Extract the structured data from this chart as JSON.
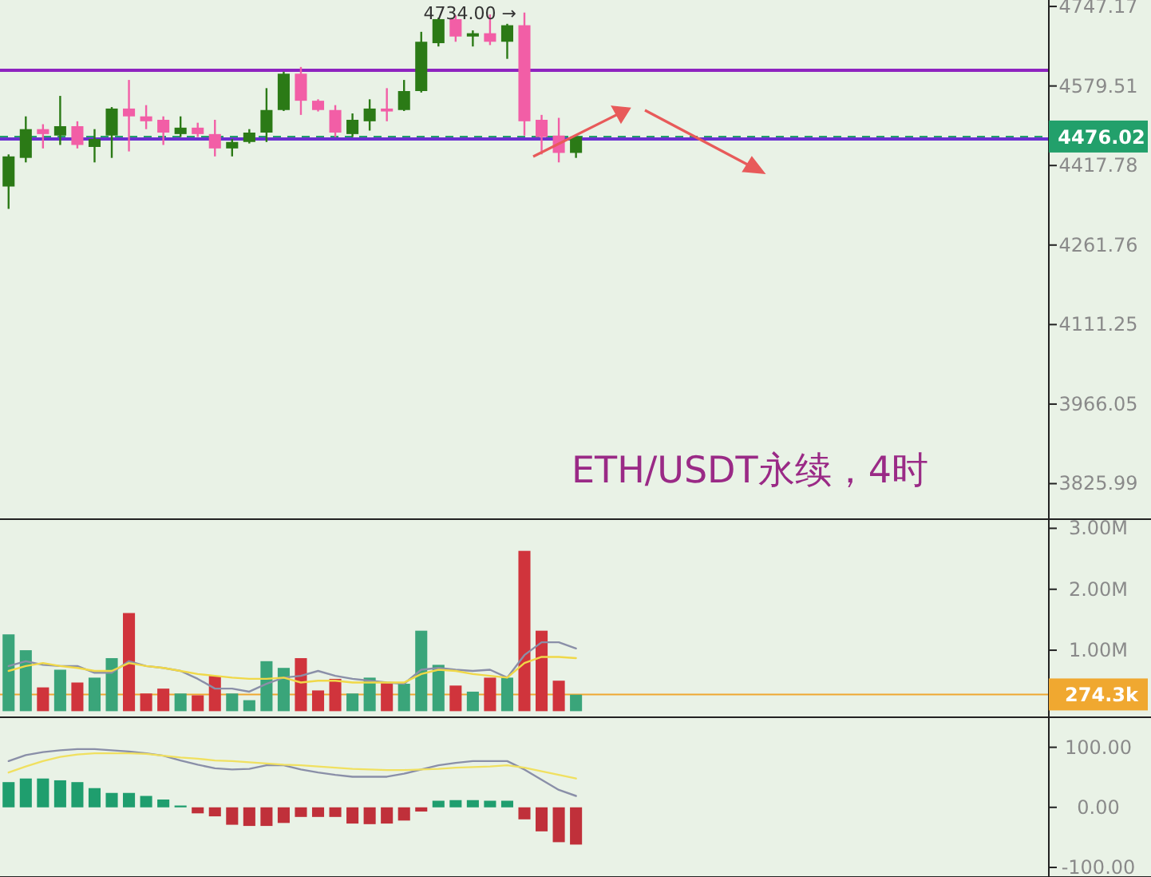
{
  "chart_data": [
    {
      "type": "candlestick",
      "log": "y",
      "tick_labels": "y",
      "ylim": [
        3765,
        4761
      ],
      "yticks": [
        4747.17,
        4579.51,
        4417.78,
        4261.76,
        4111.25,
        3966.05,
        3825.99
      ],
      "categories": [
        null,
        null,
        null,
        null,
        null,
        null,
        null,
        null,
        null,
        null,
        null,
        null,
        null,
        null,
        null,
        null,
        null,
        null,
        null,
        null,
        null,
        null,
        null,
        null,
        null,
        null,
        null,
        null,
        null,
        null,
        null,
        null,
        null,
        null,
        null,
        null,
        null,
        null,
        null,
        null,
        null,
        null,
        null,
        null,
        null,
        null,
        null,
        null,
        null,
        null,
        null,
        null,
        null,
        null,
        null,
        null,
        null,
        null,
        null,
        null,
        null
      ],
      "ohlc": [
        [
          4376,
          4440,
          4332,
          4436
        ],
        [
          4433,
          4517,
          4424,
          4491
        ],
        [
          4491,
          4501,
          4452,
          4481
        ],
        [
          4478,
          4559,
          4459,
          4497
        ],
        [
          4497,
          4507,
          4452,
          4459
        ],
        [
          4455,
          4491,
          4424,
          4471
        ],
        [
          4478,
          4536,
          4433,
          4533
        ],
        [
          4533,
          4592,
          4446,
          4517
        ],
        [
          4517,
          4540,
          4491,
          4507
        ],
        [
          4510,
          4517,
          4459,
          4484
        ],
        [
          4481,
          4517,
          4475,
          4494
        ],
        [
          4494,
          4504,
          4475,
          4481
        ],
        [
          4481,
          4510,
          4436,
          4452
        ],
        [
          4452,
          4471,
          4436,
          4465
        ],
        [
          4465,
          4491,
          4462,
          4484
        ],
        [
          4484,
          4575,
          4465,
          4530
        ],
        [
          4530,
          4609,
          4528,
          4605
        ],
        [
          4605,
          4619,
          4520,
          4549
        ],
        [
          4549,
          4552,
          4527,
          4530
        ],
        [
          4530,
          4540,
          4475,
          4484
        ],
        [
          4481,
          4523,
          4475,
          4510
        ],
        [
          4507,
          4552,
          4488,
          4533
        ],
        [
          4533,
          4575,
          4507,
          4527
        ],
        [
          4530,
          4592,
          4528,
          4569
        ],
        [
          4569,
          4693,
          4566,
          4672
        ],
        [
          4669,
          4723,
          4662,
          4720
        ],
        [
          4720,
          4728,
          4672,
          4683
        ],
        [
          4683,
          4696,
          4662,
          4690
        ],
        [
          4690,
          4730,
          4665,
          4672
        ],
        [
          4672,
          4710,
          4636,
          4707
        ],
        [
          4707,
          4734.0,
          4478,
          4507
        ],
        [
          4510,
          4520,
          4440,
          4475
        ],
        [
          4478,
          4514,
          4424,
          4443
        ],
        [
          4443,
          4476.02,
          4433,
          4476.02
        ],
        null,
        null,
        null,
        null,
        null,
        null,
        null,
        null,
        null,
        null,
        null,
        null,
        null,
        null,
        null,
        null,
        null,
        null,
        null,
        null,
        null,
        null,
        null,
        null,
        null,
        null,
        null
      ],
      "colors": [
        "#2b7a16",
        "#2b7a16",
        "#f25ea6",
        "#2b7a16",
        "#f25ea6",
        "#2b7a16",
        "#2b7a16",
        "#f25ea6",
        "#f25ea6",
        "#f25ea6",
        "#2b7a16",
        "#f25ea6",
        "#f25ea6",
        "#2b7a16",
        "#2b7a16",
        "#2b7a16",
        "#2b7a16",
        "#f25ea6",
        "#f25ea6",
        "#f25ea6",
        "#2b7a16",
        "#2b7a16",
        "#f25ea6",
        "#2b7a16",
        "#2b7a16",
        "#2b7a16",
        "#f25ea6",
        "#2b7a16",
        "#f25ea6",
        "#2b7a16",
        "#f25ea6",
        "#f25ea6",
        "#f25ea6",
        "#2b7a16",
        null,
        null,
        null,
        null,
        null,
        null,
        null,
        null,
        null,
        null,
        null,
        null,
        null,
        null,
        null,
        null,
        null,
        null,
        null,
        null,
        null,
        null,
        null,
        null,
        null,
        null,
        null
      ],
      "ref_lines": [
        {
          "axis": "y",
          "value": 4612,
          "color": "#8e24c0"
        },
        {
          "axis": "y",
          "value": 4471,
          "color": "#6a30d0"
        },
        {
          "axis": "y",
          "value": 4476.02,
          "label": "4476.02",
          "color": "#22a06b",
          "line_style": "dashed"
        }
      ],
      "annotations": [
        "4734.00 →",
        "ETH/USDT永续，4时"
      ]
    },
    {
      "type": "bar",
      "tick_labels": "y",
      "ylim": [
        -0.1,
        3.15
      ],
      "yticks": [
        {
          "value": 3,
          "label": "3.00M"
        },
        {
          "value": 2,
          "label": "2.00M"
        },
        {
          "value": 1,
          "label": "1.00M"
        }
      ],
      "categories": [
        null,
        null,
        null,
        null,
        null,
        null,
        null,
        null,
        null,
        null,
        null,
        null,
        null,
        null,
        null,
        null,
        null,
        null,
        null,
        null,
        null,
        null,
        null,
        null,
        null,
        null,
        null,
        null,
        null,
        null,
        null,
        null,
        null,
        null,
        null,
        null,
        null,
        null,
        null,
        null,
        null,
        null,
        null,
        null,
        null,
        null,
        null,
        null,
        null,
        null,
        null,
        null,
        null,
        null,
        null,
        null,
        null,
        null,
        null,
        null,
        null
      ],
      "series": [
        {
          "type": "bar",
          "values": [
            1.26,
            1.0,
            0.39,
            0.68,
            0.47,
            0.55,
            0.87,
            1.61,
            0.29,
            0.37,
            0.29,
            0.26,
            0.58,
            0.29,
            0.18,
            0.82,
            0.71,
            0.87,
            0.34,
            0.53,
            0.29,
            0.55,
            0.47,
            0.45,
            1.32,
            0.76,
            0.42,
            0.32,
            0.55,
            0.55,
            2.63,
            1.32,
            0.5,
            0.27,
            null,
            null,
            null,
            null,
            null,
            null,
            null,
            null,
            null,
            null,
            null,
            null,
            null,
            null,
            null,
            null,
            null,
            null,
            null,
            null,
            null,
            null,
            null,
            null,
            null,
            null,
            null
          ],
          "colors": [
            "#3aa57a",
            "#3aa57a",
            "#d0343c",
            "#3aa57a",
            "#d0343c",
            "#3aa57a",
            "#3aa57a",
            "#d0343c",
            "#d0343c",
            "#d0343c",
            "#3aa57a",
            "#d0343c",
            "#d0343c",
            "#3aa57a",
            "#3aa57a",
            "#3aa57a",
            "#3aa57a",
            "#d0343c",
            "#d0343c",
            "#d0343c",
            "#3aa57a",
            "#3aa57a",
            "#d0343c",
            "#3aa57a",
            "#3aa57a",
            "#3aa57a",
            "#d0343c",
            "#3aa57a",
            "#d0343c",
            "#3aa57a",
            "#d0343c",
            "#d0343c",
            "#d0343c",
            "#3aa57a",
            null,
            null,
            null,
            null,
            null,
            null,
            null,
            null,
            null,
            null,
            null,
            null,
            null,
            null,
            null,
            null,
            null,
            null,
            null,
            null,
            null,
            null,
            null,
            null,
            null,
            null,
            null
          ]
        },
        {
          "type": "line",
          "color": "#8a8fa8",
          "values": [
            0.74,
            0.82,
            0.76,
            0.74,
            0.74,
            0.63,
            0.63,
            0.82,
            0.74,
            0.71,
            0.66,
            0.53,
            0.37,
            0.37,
            0.32,
            0.45,
            0.55,
            0.58,
            0.66,
            0.58,
            0.53,
            0.5,
            0.47,
            0.45,
            0.68,
            0.71,
            0.68,
            0.66,
            0.68,
            0.55,
            0.92,
            1.13,
            1.13,
            1.03,
            null,
            null,
            null,
            null,
            null,
            null,
            null,
            null,
            null,
            null,
            null,
            null,
            null,
            null,
            null,
            null,
            null,
            null,
            null,
            null,
            null,
            null,
            null,
            null,
            null,
            null,
            null
          ]
        },
        {
          "type": "line",
          "color": "#f0d848",
          "values": [
            0.66,
            0.74,
            0.79,
            0.74,
            0.71,
            0.66,
            0.66,
            0.79,
            0.74,
            0.71,
            0.66,
            0.61,
            0.58,
            0.55,
            0.53,
            0.53,
            0.55,
            0.47,
            0.5,
            0.5,
            0.47,
            0.47,
            0.47,
            0.47,
            0.61,
            0.68,
            0.66,
            0.61,
            0.58,
            0.55,
            0.79,
            0.89,
            0.89,
            0.87,
            null,
            null,
            null,
            null,
            null,
            null,
            null,
            null,
            null,
            null,
            null,
            null,
            null,
            null,
            null,
            null,
            null,
            null,
            null,
            null,
            null,
            null,
            null,
            null,
            null,
            null,
            null
          ]
        }
      ],
      "ref_lines": [
        {
          "axis": "y",
          "value": 0.2743,
          "label": "274.3k",
          "color": "#f0a830"
        }
      ]
    },
    {
      "type": "bar",
      "tick_labels": "y",
      "ylim": [
        -116,
        150
      ],
      "yticks": [
        {
          "value": 100,
          "label": "100.00"
        },
        {
          "value": 0,
          "label": "0.00"
        },
        {
          "value": -100,
          "label": "-100.00"
        }
      ],
      "categories": [
        null,
        null,
        null,
        null,
        null,
        null,
        null,
        null,
        null,
        null,
        null,
        null,
        null,
        null,
        null,
        null,
        null,
        null,
        null,
        null,
        null,
        null,
        null,
        null,
        null,
        null,
        null,
        null,
        null,
        null,
        null,
        null,
        null,
        null,
        null,
        null,
        null,
        null,
        null,
        null,
        null,
        null,
        null,
        null,
        null,
        null,
        null,
        null,
        null,
        null,
        null,
        null,
        null,
        null,
        null,
        null,
        null,
        null,
        null,
        null,
        null
      ],
      "series": [
        {
          "type": "bar",
          "values": [
            42,
            48,
            48,
            45,
            42,
            32,
            24,
            24,
            19,
            13,
            3,
            -10,
            -15,
            -29,
            -31,
            -31,
            -26,
            -16,
            -16,
            -16,
            -27,
            -28,
            -27,
            -22,
            -7,
            11,
            12,
            12,
            11,
            11,
            -20,
            -40,
            -58,
            -62,
            null,
            null,
            null,
            null,
            null,
            null,
            null,
            null,
            null,
            null,
            null,
            null,
            null,
            null,
            null,
            null,
            null,
            null,
            null,
            null,
            null,
            null,
            null,
            null,
            null,
            null,
            null
          ],
          "colors": [
            "#1f9e6e",
            "#1f9e6e",
            "#1f9e6e",
            "#1f9e6e",
            "#1f9e6e",
            "#1f9e6e",
            "#1f9e6e",
            "#1f9e6e",
            "#1f9e6e",
            "#1f9e6e",
            "#1f9e6e",
            "#c0303a",
            "#c0303a",
            "#c0303a",
            "#c0303a",
            "#c0303a",
            "#c0303a",
            "#c0303a",
            "#c0303a",
            "#c0303a",
            "#c0303a",
            "#c0303a",
            "#c0303a",
            "#c0303a",
            "#c0303a",
            "#1f9e6e",
            "#1f9e6e",
            "#1f9e6e",
            "#1f9e6e",
            "#1f9e6e",
            "#c0303a",
            "#c0303a",
            "#c0303a",
            "#c0303a",
            null,
            null,
            null,
            null,
            null,
            null,
            null,
            null,
            null,
            null,
            null,
            null,
            null,
            null,
            null,
            null,
            null,
            null,
            null,
            null,
            null,
            null,
            null,
            null,
            null,
            null,
            null
          ]
        },
        {
          "type": "line",
          "color": "#8a8fa8",
          "values": [
            77,
            87,
            92,
            95,
            97,
            97,
            95,
            93,
            90,
            86,
            78,
            71,
            65,
            63,
            64,
            70,
            70,
            63,
            58,
            54,
            51,
            51,
            51,
            56,
            63,
            70,
            74,
            77,
            77,
            77,
            63,
            46,
            29,
            19,
            null,
            null,
            null,
            null,
            null,
            null,
            null,
            null,
            null,
            null,
            null,
            null,
            null,
            null,
            null,
            null,
            null,
            null,
            null,
            null,
            null,
            null,
            null,
            null,
            null,
            null,
            null
          ]
        },
        {
          "type": "line",
          "color": "#f0e060",
          "values": [
            58,
            68,
            77,
            84,
            88,
            90,
            90,
            90,
            89,
            86,
            83,
            81,
            78,
            77,
            75,
            73,
            71,
            70,
            68,
            66,
            64,
            63,
            62,
            62,
            63,
            64,
            66,
            67,
            68,
            70,
            66,
            60,
            54,
            48,
            null,
            null,
            null,
            null,
            null,
            null,
            null,
            null,
            null,
            null,
            null,
            null,
            null,
            null,
            null,
            null,
            null,
            null,
            null,
            null,
            null,
            null,
            null,
            null,
            null,
            null,
            null
          ]
        }
      ]
    }
  ]
}
